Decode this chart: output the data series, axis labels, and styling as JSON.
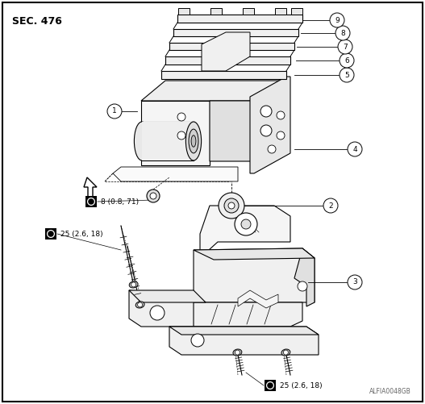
{
  "title": "SEC. 476",
  "watermark": "ALFIA0048GB",
  "bg": "#ffffff",
  "lc": "#000000",
  "figsize": [
    5.27,
    5.01
  ],
  "dpi": 100,
  "torque1_text": "8 (0.8, 71)",
  "torque2_text": "25 (2.6, 18)",
  "torque3_text": "25 (2.6, 18)"
}
